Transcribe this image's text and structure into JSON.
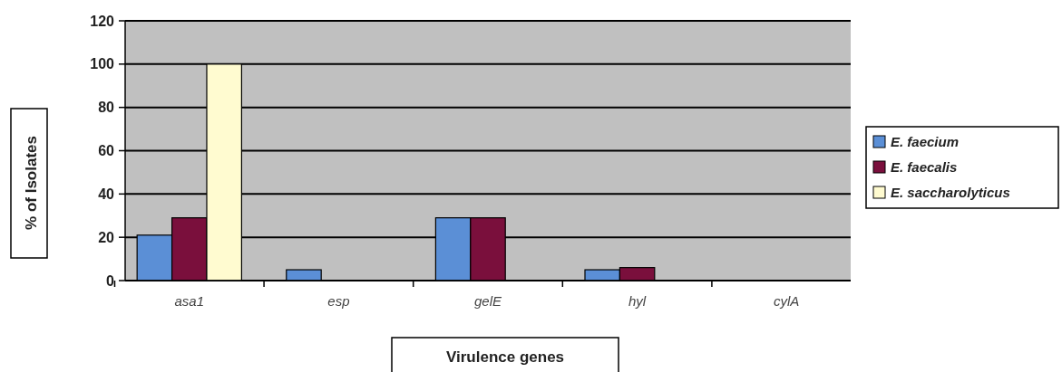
{
  "chart_data": {
    "type": "bar",
    "xlabel": "Virulence genes",
    "ylabel": "% of Isolates",
    "categories": [
      "asa1",
      "esp",
      "gelE",
      "hyl",
      "cylA"
    ],
    "series": [
      {
        "name": "E. faecium",
        "color": "#5b8fd6",
        "values": [
          21,
          5,
          29,
          5,
          0
        ]
      },
      {
        "name": "E. faecalis",
        "color": "#7a0f3c",
        "values": [
          29,
          0,
          29,
          6,
          0
        ]
      },
      {
        "name": "E. saccharolyticus",
        "color": "#fffbd0",
        "values": [
          100,
          0,
          0,
          0,
          0
        ]
      }
    ],
    "ylim": [
      0,
      120
    ],
    "yticks": [
      0,
      20,
      40,
      60,
      80,
      100,
      120
    ],
    "grid": "y",
    "legend": "right"
  }
}
